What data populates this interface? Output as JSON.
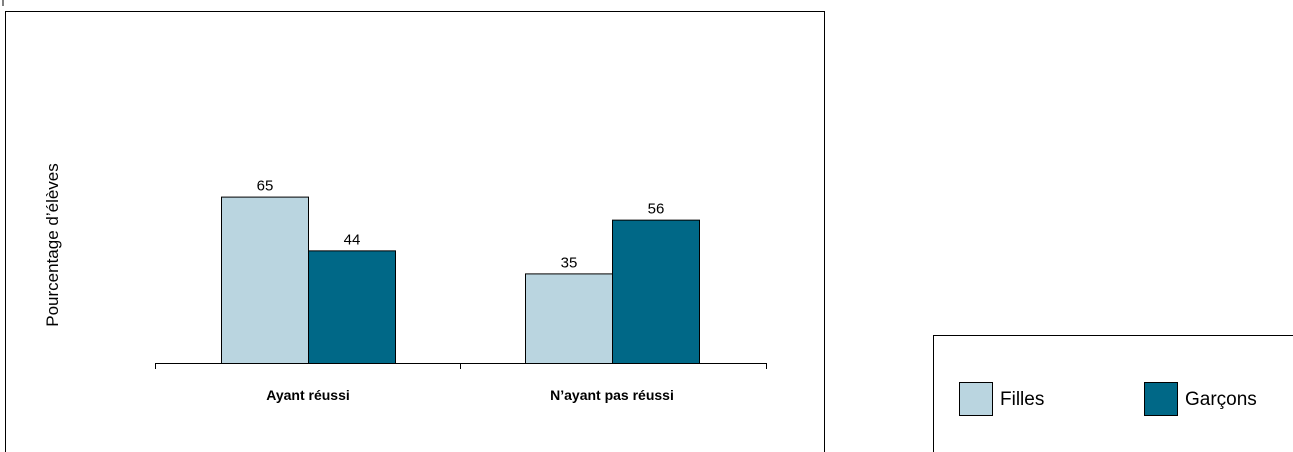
{
  "chart_data": {
    "type": "bar",
    "title": "",
    "xlabel": "",
    "ylabel": "Pourcentage d’élèves",
    "categories": [
      "Ayant réussi",
      "N’ayant pas réussi"
    ],
    "series": [
      {
        "name": "Filles",
        "values": [
          65,
          35
        ],
        "color": "#bad5e0"
      },
      {
        "name": "Garçons",
        "values": [
          44,
          56
        ],
        "color": "#006887"
      }
    ],
    "ylim": [
      0,
      100
    ],
    "grid": false,
    "legend_position": "bottom-right"
  }
}
